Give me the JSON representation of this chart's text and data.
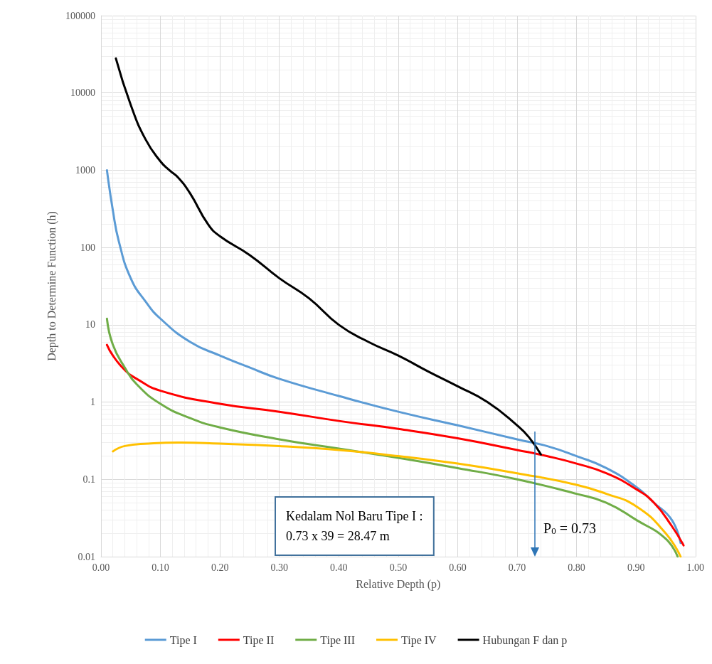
{
  "chart_data": {
    "type": "line",
    "xlabel": "Relative Depth (p)",
    "ylabel": "Depth to Determine Function (h)",
    "log": "y",
    "grid": true,
    "legend": "bottom",
    "marker": "none",
    "line_style": "solid",
    "xlim": [
      0,
      1
    ],
    "xticks": [
      {
        "value": 0,
        "label": "0.00"
      },
      {
        "value": 0.1,
        "label": "0.10"
      },
      {
        "value": 0.2,
        "label": "0.20"
      },
      {
        "value": 0.3,
        "label": "0.30"
      },
      {
        "value": 0.4,
        "label": "0.40"
      },
      {
        "value": 0.5,
        "label": "0.50"
      },
      {
        "value": 0.6,
        "label": "0.60"
      },
      {
        "value": 0.7,
        "label": "0.70"
      },
      {
        "value": 0.8,
        "label": "0.80"
      },
      {
        "value": 0.9,
        "label": "0.90"
      },
      {
        "value": 1,
        "label": "1.00"
      }
    ],
    "ylim": [
      0.01,
      100000
    ],
    "yticks": [
      0.01,
      0.1,
      1,
      10,
      100,
      1000,
      10000,
      100000
    ],
    "series": [
      {
        "name": "Tipe I",
        "color": "#5b9bd5",
        "x": [
          0.01,
          0.02,
          0.03,
          0.05,
          0.075,
          0.1,
          0.15,
          0.2,
          0.25,
          0.3,
          0.4,
          0.5,
          0.6,
          0.7,
          0.75,
          0.8,
          0.85,
          0.9,
          0.93,
          0.96,
          0.975
        ],
        "values": [
          1000,
          300,
          120,
          40,
          20,
          12,
          6,
          4,
          2.8,
          2,
          1.2,
          0.75,
          0.5,
          0.33,
          0.27,
          0.2,
          0.14,
          0.08,
          0.05,
          0.03,
          0.015
        ]
      },
      {
        "name": "Tipe II",
        "color": "#ff0000",
        "x": [
          0.01,
          0.02,
          0.04,
          0.06,
          0.1,
          0.2,
          0.3,
          0.4,
          0.5,
          0.6,
          0.7,
          0.75,
          0.8,
          0.85,
          0.9,
          0.93,
          0.96,
          0.98
        ],
        "values": [
          5.5,
          4,
          2.6,
          2,
          1.4,
          0.95,
          0.75,
          0.57,
          0.45,
          0.34,
          0.24,
          0.2,
          0.16,
          0.12,
          0.075,
          0.05,
          0.025,
          0.014
        ]
      },
      {
        "name": "Tipe III",
        "color": "#70ad47",
        "x": [
          0.01,
          0.02,
          0.04,
          0.06,
          0.1,
          0.15,
          0.2,
          0.3,
          0.4,
          0.5,
          0.6,
          0.7,
          0.8,
          0.85,
          0.9,
          0.95,
          0.97
        ],
        "values": [
          12,
          5.5,
          2.8,
          1.7,
          0.95,
          0.62,
          0.47,
          0.33,
          0.25,
          0.19,
          0.14,
          0.1,
          0.065,
          0.05,
          0.03,
          0.017,
          0.01
        ]
      },
      {
        "name": "Tipe IV",
        "color": "#ffc000",
        "x": [
          0.02,
          0.04,
          0.08,
          0.13,
          0.2,
          0.3,
          0.4,
          0.5,
          0.6,
          0.7,
          0.8,
          0.85,
          0.9,
          0.95,
          0.975
        ],
        "values": [
          0.23,
          0.27,
          0.29,
          0.3,
          0.29,
          0.27,
          0.24,
          0.2,
          0.16,
          0.12,
          0.085,
          0.065,
          0.045,
          0.02,
          0.01
        ]
      },
      {
        "name": "Hubungan F dan p",
        "color": "#000000",
        "x": [
          0.025,
          0.05,
          0.075,
          0.1,
          0.115,
          0.13,
          0.15,
          0.18,
          0.2,
          0.25,
          0.3,
          0.35,
          0.4,
          0.45,
          0.5,
          0.55,
          0.6,
          0.65,
          0.7,
          0.72,
          0.74
        ],
        "values": [
          28000,
          7000,
          2500,
          1300,
          1000,
          800,
          500,
          200,
          140,
          80,
          40,
          22,
          10,
          6,
          4,
          2.5,
          1.6,
          1,
          0.5,
          0.35,
          0.21
        ]
      }
    ],
    "ref_lines": [
      {
        "axis": "x",
        "value": 0.73,
        "label": "P$_{0}$ = 0.73",
        "color": "#2e75b6"
      }
    ],
    "annotations": [
      "Kedalam Nol Baru Tipe I :\n0.73 x 39 = 28.47 m"
    ]
  }
}
